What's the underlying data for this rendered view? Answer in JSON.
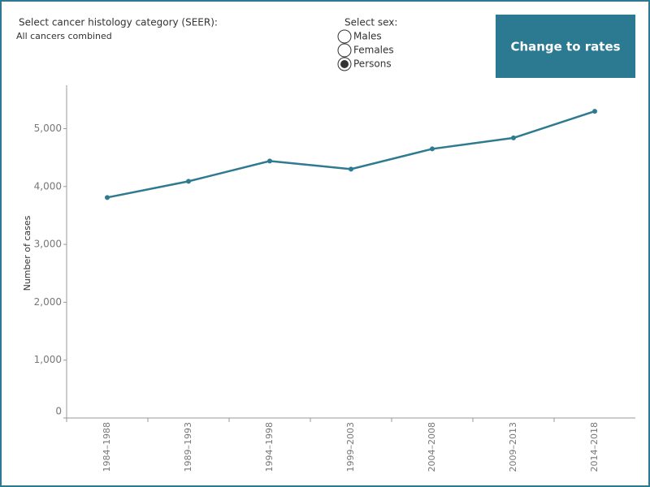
{
  "controls": {
    "histology_label": "Select cancer histology category (SEER):",
    "histology_value": "All cancers combined",
    "sex_label": "Select sex:",
    "sex_options": [
      "Males",
      "Females",
      "Persons"
    ],
    "selected_sex": 2,
    "button": "Change to rates"
  },
  "chart_data": {
    "type": "line",
    "y_title": "Number of cases",
    "categories": [
      "1984–1988",
      "1989–1993",
      "1994–1998",
      "1999–2003",
      "2004–2008",
      "2009–2013",
      "2014–2018"
    ],
    "series": [
      {
        "name": "Persons",
        "color": "#2e7a90",
        "values": [
          3810,
          4090,
          4440,
          4300,
          4650,
          4840,
          5300
        ]
      }
    ],
    "ylim": [
      0,
      5750
    ],
    "yticks": [
      0,
      {
        "value": 1000,
        "label": "1,000"
      },
      {
        "value": 2000,
        "label": "2,000"
      },
      {
        "value": 3000,
        "label": "3,000"
      },
      {
        "value": 4000,
        "label": "4,000"
      },
      {
        "value": 5000,
        "label": "5,000"
      }
    ],
    "grid": false
  }
}
